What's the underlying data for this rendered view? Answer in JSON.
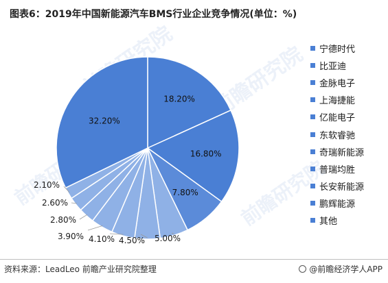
{
  "title": "图表6：2019年中国新能源汽车BMS行业企业竞争情况(单位：%)",
  "footer": {
    "source": "资料来源：LeadLeo 前瞻产业研究院整理",
    "brand": "@前瞻经济学人APP"
  },
  "chart_data": {
    "type": "pie",
    "title": "图表6：2019年中国新能源汽车BMS行业企业竞争情况(单位：%)",
    "unit": "%",
    "legend_position": "right",
    "categories": [
      "宁德时代",
      "比亚迪",
      "金脉电子",
      "上海捷能",
      "亿能电子",
      "东软睿驰",
      "奇瑞新能源",
      "普瑞均胜",
      "长安新能源",
      "鹏辉能源",
      "其他"
    ],
    "values": [
      18.2,
      16.8,
      7.8,
      5.0,
      4.5,
      4.1,
      3.9,
      2.8,
      2.6,
      2.1,
      32.2
    ],
    "labels": [
      "18.20%",
      "16.80%",
      "7.80%",
      "5.00%",
      "4.50%",
      "4.10%",
      "3.90%",
      "2.80%",
      "2.60%",
      "2.10%",
      "32.20%"
    ],
    "colors": [
      "#4a7fd4",
      "#4a7fd4",
      "#5b8bd9",
      "#8fb1e6",
      "#8fb1e6",
      "#8fb1e6",
      "#8fb1e6",
      "#8fb1e6",
      "#8fb1e6",
      "#8fb1e6",
      "#4a7fd4"
    ],
    "legend_color": "#4a7fd4"
  }
}
